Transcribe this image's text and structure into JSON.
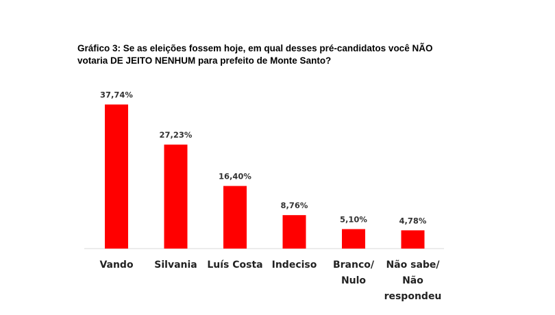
{
  "chart_data": {
    "type": "bar",
    "title_lines": [
      "Gráfico 3: Se as eleições fossem hoje, em qual desses pré-candidatos você NÃO",
      "votaria DE JEITO NENHUM para prefeito de Monte Santo?"
    ],
    "categories": [
      [
        "Vando"
      ],
      [
        "Silvania"
      ],
      [
        "Luís Costa"
      ],
      [
        "Indeciso"
      ],
      [
        "Branco/",
        "Nulo"
      ],
      [
        "Não sabe/",
        "Não",
        "respondeu"
      ]
    ],
    "values": [
      37.74,
      27.23,
      16.4,
      8.76,
      5.1,
      4.78
    ],
    "value_labels": [
      "37,74%",
      "27,23%",
      "16,40%",
      "8,76%",
      "5,10%",
      "4,78%"
    ],
    "bar_color": "#ff0000",
    "ylim": [
      0,
      40
    ],
    "grid": false,
    "legend": "none"
  }
}
